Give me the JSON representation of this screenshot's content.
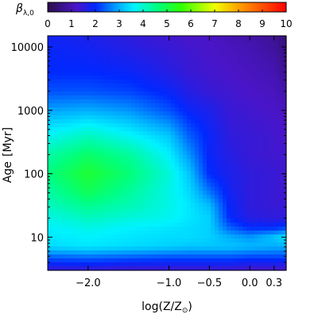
{
  "chart_data": {
    "type": "heatmap",
    "colorbar": {
      "label_symbol": "β",
      "label_subscript": "λ,0",
      "range": [
        0,
        10
      ],
      "ticks": [
        0,
        1,
        2,
        3,
        4,
        5,
        6,
        7,
        8,
        9,
        10
      ],
      "tick_labels": [
        "0",
        "1",
        "2",
        "3",
        "4",
        "5",
        "6",
        "7",
        "8",
        "9",
        "10"
      ],
      "colormap": "rainbow",
      "colormap_stops": [
        {
          "value": 0,
          "color": "#2a0f4a"
        },
        {
          "value": 1.2,
          "color": "#4a15c8"
        },
        {
          "value": 2.0,
          "color": "#0028ff"
        },
        {
          "value": 3.0,
          "color": "#00b0ff"
        },
        {
          "value": 3.6,
          "color": "#00f2ff"
        },
        {
          "value": 4.6,
          "color": "#00ff80"
        },
        {
          "value": 5.6,
          "color": "#30ff00"
        },
        {
          "value": 7.0,
          "color": "#f0ff00"
        },
        {
          "value": 8.2,
          "color": "#ff9000"
        },
        {
          "value": 10,
          "color": "#ff0000"
        }
      ]
    },
    "x_axis": {
      "label_text": "log(Z/Z",
      "label_sub": "⊙",
      "label_close": ")",
      "range": [
        -2.5,
        0.45
      ],
      "scale": "linear",
      "ticks": [
        -2.0,
        -1.0,
        -0.5,
        0.0,
        0.3
      ],
      "tick_labels": [
        "−2.0",
        "−1.0",
        "−0.5",
        "0.0",
        "0.3"
      ]
    },
    "y_axis": {
      "label_text": "Age",
      "label_unit": "[Myr]",
      "range": [
        3,
        15000
      ],
      "scale": "log",
      "ticks": [
        10,
        100,
        1000,
        10000
      ],
      "tick_labels": [
        "10",
        "100",
        "1000",
        "10000"
      ]
    },
    "grid": false,
    "field_anchors": {
      "log_z": [
        -2.5,
        -2.0,
        -1.5,
        -1.0,
        -0.75,
        -0.5,
        -0.25,
        0.0,
        0.3,
        0.45
      ],
      "log_age": [
        0.477,
        0.7,
        0.85,
        1.0,
        1.15,
        1.3,
        1.5,
        1.7,
        2.0,
        2.3,
        2.6,
        3.0,
        3.3,
        3.6,
        4.0,
        4.18
      ],
      "values": [
        [
          1.4,
          1.4,
          1.3,
          1.3,
          1.3,
          1.3,
          1.3,
          1.2,
          1.2,
          1.2
        ],
        [
          2.5,
          2.6,
          2.5,
          2.4,
          2.4,
          2.4,
          2.4,
          2.3,
          2.3,
          2.3
        ],
        [
          3.4,
          3.5,
          3.4,
          3.3,
          3.2,
          3.2,
          3.2,
          3.1,
          3.0,
          3.0
        ],
        [
          3.5,
          3.6,
          3.5,
          3.4,
          3.4,
          3.3,
          3.0,
          2.8,
          3.2,
          3.5
        ],
        [
          3.6,
          3.8,
          3.6,
          3.5,
          3.4,
          3.3,
          2.4,
          2.0,
          2.0,
          2.2
        ],
        [
          3.8,
          4.1,
          3.9,
          3.7,
          3.5,
          3.3,
          2.0,
          1.6,
          1.5,
          1.5
        ],
        [
          4.1,
          4.5,
          4.2,
          3.8,
          3.5,
          3.1,
          1.9,
          1.5,
          1.4,
          1.4
        ],
        [
          4.3,
          4.9,
          4.4,
          3.8,
          3.4,
          2.6,
          1.8,
          1.5,
          1.4,
          1.3
        ],
        [
          4.6,
          5.2,
          4.7,
          3.9,
          3.2,
          2.0,
          1.7,
          1.5,
          1.4,
          1.3
        ],
        [
          4.3,
          4.8,
          4.4,
          3.6,
          2.8,
          1.9,
          1.6,
          1.4,
          1.3,
          1.3
        ],
        [
          3.7,
          4.1,
          3.7,
          3.2,
          2.4,
          1.9,
          1.5,
          1.4,
          1.3,
          1.2
        ],
        [
          2.9,
          3.0,
          2.8,
          2.3,
          1.9,
          1.7,
          1.4,
          1.3,
          1.2,
          1.1
        ],
        [
          2.3,
          2.3,
          2.2,
          1.9,
          1.6,
          1.4,
          1.3,
          1.2,
          1.1,
          0.9
        ],
        [
          2.0,
          2.0,
          1.9,
          1.6,
          1.4,
          1.3,
          1.2,
          1.1,
          1.0,
          0.7
        ],
        [
          1.9,
          1.8,
          1.6,
          1.4,
          1.3,
          1.2,
          1.1,
          1.0,
          0.8,
          0.5
        ],
        [
          1.8,
          1.7,
          1.5,
          1.3,
          1.2,
          1.2,
          1.0,
          0.9,
          0.7,
          0.4
        ]
      ]
    }
  }
}
